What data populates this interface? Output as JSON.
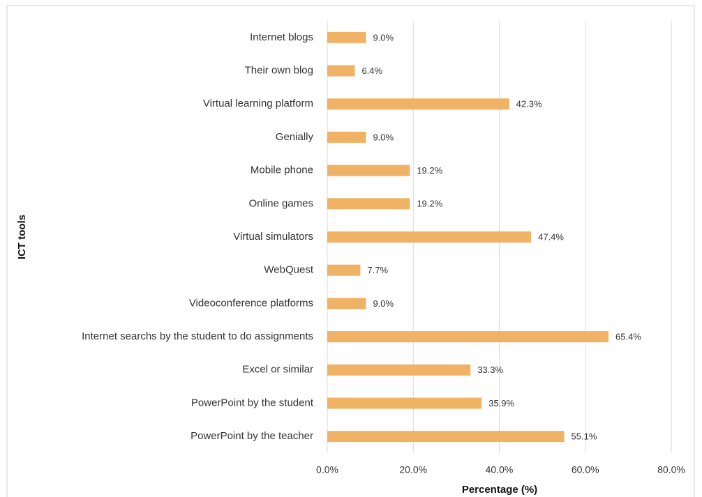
{
  "chart_data": {
    "type": "bar",
    "orientation": "horizontal",
    "xlabel": "Percentage (%)",
    "ylabel": "ICT tools",
    "categories": [
      "Internet blogs",
      "Their own blog",
      "Virtual learning platform",
      "Genially",
      "Mobile phone",
      "Online games",
      "Virtual simulators",
      "WebQuest",
      "Videoconference platforms",
      "Internet searchs by the student to do assignments",
      "Excel or similar",
      "PowerPoint by the student",
      "PowerPoint by the teacher"
    ],
    "values": [
      9.0,
      6.4,
      42.3,
      9.0,
      19.2,
      19.2,
      47.4,
      7.7,
      9.0,
      65.4,
      33.3,
      35.9,
      55.1
    ],
    "value_labels": [
      "9.0%",
      "6.4%",
      "42.3%",
      "9.0%",
      "19.2%",
      "19.2%",
      "47.4%",
      "7.7%",
      "9.0%",
      "65.4%",
      "33.3%",
      "35.9%",
      "55.1%"
    ],
    "color": "#f0b264",
    "xlim": [
      0,
      80
    ],
    "xticks": [
      {
        "value": 0,
        "label": "0.0%"
      },
      {
        "value": 20,
        "label": "20.0%"
      },
      {
        "value": 40,
        "label": "40.0%"
      },
      {
        "value": 60,
        "label": "60.0%"
      },
      {
        "value": 80,
        "label": "80.0%"
      }
    ],
    "grid": true
  }
}
